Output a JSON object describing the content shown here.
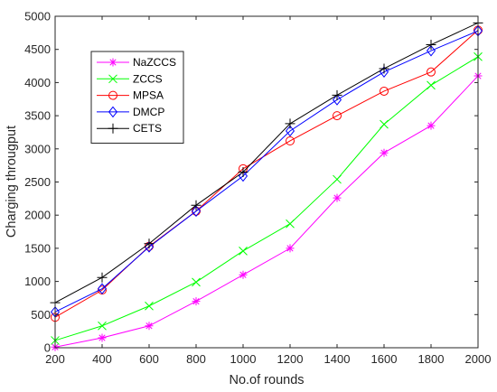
{
  "chart_data": {
    "type": "line",
    "title": "",
    "xlabel": "No.of rounds",
    "ylabel": "Charging througput",
    "x": [
      200,
      400,
      600,
      800,
      1000,
      1200,
      1400,
      1600,
      1800,
      2000
    ],
    "xlim": [
      200,
      2000
    ],
    "ylim": [
      0,
      5000
    ],
    "xticks": [
      "200",
      "400",
      "600",
      "800",
      "1000",
      "1200",
      "1400",
      "1600",
      "1800",
      "2000"
    ],
    "yticks": [
      "0",
      "500",
      "1000",
      "1500",
      "2000",
      "2500",
      "3000",
      "3500",
      "4000",
      "4500",
      "5000"
    ],
    "grid": false,
    "legend_position": "top-left",
    "series": [
      {
        "name": "NaZCCS",
        "color": "#ff00ff",
        "marker": "asterisk",
        "values": [
          10,
          150,
          330,
          700,
          1100,
          1500,
          2260,
          2940,
          3350,
          4100
        ]
      },
      {
        "name": "ZCCS",
        "color": "#00ff00",
        "marker": "x",
        "values": [
          110,
          330,
          630,
          990,
          1460,
          1870,
          2540,
          3370,
          3960,
          4390
        ]
      },
      {
        "name": "MPSA",
        "color": "#ff0000",
        "marker": "circle",
        "values": [
          460,
          870,
          1530,
          2060,
          2700,
          3120,
          3500,
          3870,
          4160,
          4790
        ]
      },
      {
        "name": "DMCP",
        "color": "#0000ff",
        "marker": "diamond",
        "values": [
          540,
          890,
          1520,
          2060,
          2590,
          3270,
          3740,
          4160,
          4480,
          4780
        ]
      },
      {
        "name": "CETS",
        "color": "#000000",
        "marker": "plus",
        "values": [
          680,
          1060,
          1570,
          2150,
          2650,
          3380,
          3810,
          4210,
          4570,
          4900
        ]
      }
    ]
  }
}
